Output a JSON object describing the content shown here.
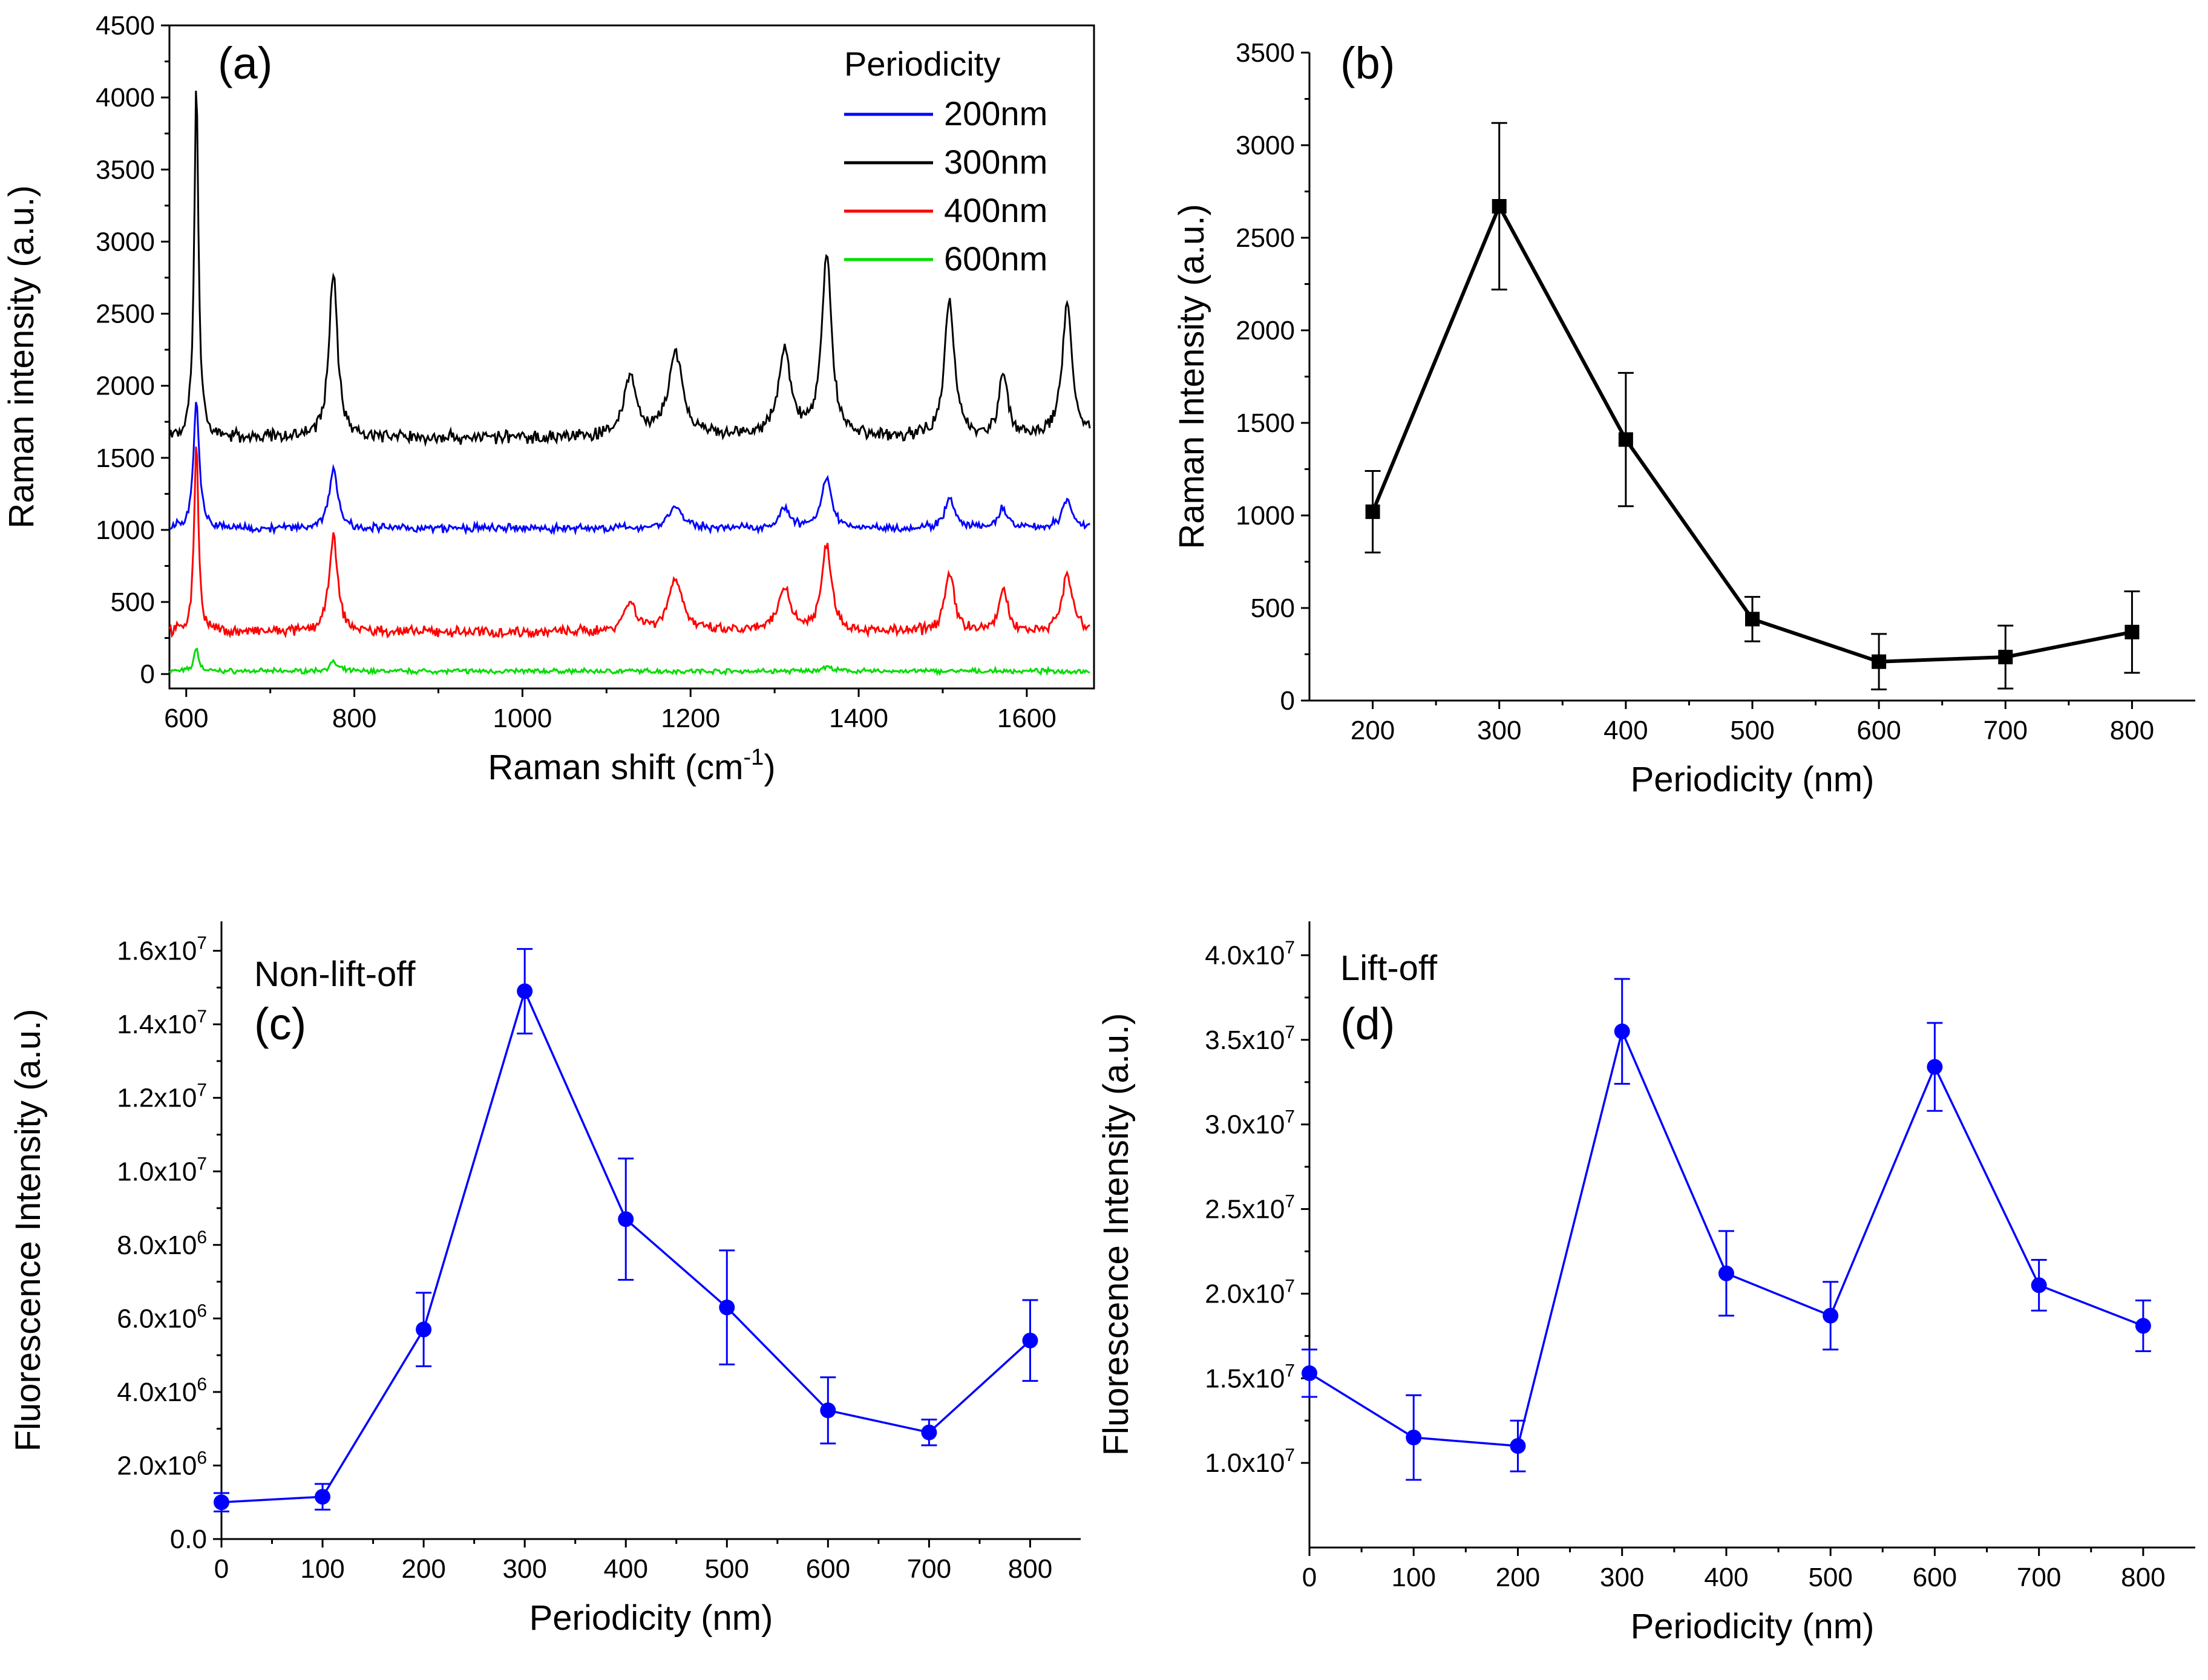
{
  "chart_data": [
    {
      "id": "a",
      "type": "line",
      "panel_label": "(a)",
      "xlabel": "Raman shift (cm",
      "xlabel_sup": "-1",
      "xlabel_tail": ")",
      "ylabel": "Raman intensity (a.u.)",
      "xlim": [
        580,
        1680
      ],
      "ylim": [
        -100,
        4500
      ],
      "xticks": [
        600,
        800,
        1000,
        1200,
        1400,
        1600
      ],
      "xtick_labels": [
        "600",
        "800",
        "1000",
        "1200",
        "1400",
        "1600"
      ],
      "yticks": [
        0,
        500,
        1000,
        1500,
        2000,
        2500,
        3000,
        3500,
        4000,
        4500
      ],
      "ytick_labels": [
        "0",
        "500",
        "1000",
        "1500",
        "2000",
        "2500",
        "3000",
        "3500",
        "4000",
        "4500"
      ],
      "legend_title": "Periodicity",
      "legend_position": "top-right",
      "series": [
        {
          "name": "200nm",
          "color": "#0000ff",
          "baseline": 1010,
          "noise": 35,
          "peaks": [
            [
              612,
              900,
              4
            ],
            [
              775,
              420,
              6
            ],
            [
              1182,
              150,
              10
            ],
            [
              1312,
              130,
              8
            ],
            [
              1362,
              340,
              7
            ],
            [
              1508,
              200,
              7
            ],
            [
              1572,
              140,
              6
            ],
            [
              1648,
              200,
              7
            ]
          ]
        },
        {
          "name": "300nm",
          "color": "#000000",
          "baseline": 1640,
          "noise": 55,
          "peaks": [
            [
              612,
              2450,
              3
            ],
            [
              775,
              1150,
              6
            ],
            [
              1128,
              420,
              9
            ],
            [
              1182,
              580,
              10
            ],
            [
              1312,
              580,
              9
            ],
            [
              1362,
              1250,
              7
            ],
            [
              1508,
              940,
              7
            ],
            [
              1572,
              440,
              6
            ],
            [
              1648,
              940,
              7
            ]
          ]
        },
        {
          "name": "400nm",
          "color": "#ff0000",
          "baseline": 290,
          "noise": 45,
          "peaks": [
            [
              612,
              1350,
              3
            ],
            [
              775,
              660,
              6
            ],
            [
              1128,
              200,
              9
            ],
            [
              1182,
              370,
              10
            ],
            [
              1312,
              300,
              9
            ],
            [
              1362,
              600,
              7
            ],
            [
              1508,
              400,
              7
            ],
            [
              1572,
              300,
              6
            ],
            [
              1648,
              420,
              7
            ]
          ]
        },
        {
          "name": "600nm",
          "color": "#00dd00",
          "baseline": 20,
          "noise": 20,
          "peaks": [
            [
              612,
              170,
              3
            ],
            [
              775,
              60,
              6
            ],
            [
              1362,
              30,
              7
            ]
          ]
        }
      ]
    },
    {
      "id": "b",
      "type": "line",
      "panel_label": "(b)",
      "xlabel": "Periodicity (nm)",
      "ylabel": "Raman Intensity (a.u.)",
      "xlim": [
        150,
        850
      ],
      "ylim": [
        0,
        3500
      ],
      "xticks": [
        200,
        300,
        400,
        500,
        600,
        700,
        800
      ],
      "xtick_labels": [
        "200",
        "300",
        "400",
        "500",
        "600",
        "700",
        "800"
      ],
      "yticks": [
        0,
        500,
        1000,
        1500,
        2000,
        2500,
        3000,
        3500
      ],
      "ytick_labels": [
        "0",
        "500",
        "1000",
        "1500",
        "2000",
        "2500",
        "3000",
        "3500"
      ],
      "marker": "square",
      "color": "#000000",
      "x": [
        200,
        300,
        400,
        500,
        600,
        700,
        800
      ],
      "y": [
        1020,
        2670,
        1410,
        440,
        210,
        235,
        370
      ],
      "yerr": [
        220,
        450,
        360,
        120,
        150,
        170,
        220
      ]
    },
    {
      "id": "c",
      "type": "line",
      "panel_label": "(c)",
      "annotation": "Non-lift-off",
      "xlabel": "Periodicity (nm)",
      "ylabel": "Fluorescence Intensity (a.u.)",
      "xlim": [
        0,
        850
      ],
      "ylim": [
        0,
        16800000
      ],
      "xticks": [
        0,
        100,
        200,
        300,
        400,
        500,
        600,
        700,
        800
      ],
      "xtick_labels": [
        "0",
        "100",
        "200",
        "300",
        "400",
        "500",
        "600",
        "700",
        "800"
      ],
      "yticks": [
        0,
        2000000,
        4000000,
        6000000,
        8000000,
        10000000,
        12000000,
        14000000,
        16000000
      ],
      "ytick_labels": [
        "0.0",
        "2.0x10^6",
        "4.0x10^6",
        "6.0x10^6",
        "8.0x10^6",
        "1.0x10^7",
        "1.2x10^7",
        "1.4x10^7",
        "1.6x10^7"
      ],
      "marker": "circle",
      "color": "#0000ff",
      "x": [
        0,
        100,
        200,
        300,
        400,
        500,
        600,
        700,
        800
      ],
      "y": [
        1000000,
        1150000,
        5700000,
        14900000,
        8700000,
        6300000,
        3500000,
        2900000,
        5400000
      ],
      "yerr": [
        250000,
        350000,
        1000000,
        1150000,
        1650000,
        1550000,
        900000,
        350000,
        1100000
      ]
    },
    {
      "id": "d",
      "type": "line",
      "panel_label": "(d)",
      "annotation": "Lift-off",
      "xlabel": "Periodicity (nm)",
      "ylabel": "Fluorescence Intensity (a.u.)",
      "xlim": [
        0,
        850
      ],
      "ylim": [
        5000000,
        42000000
      ],
      "xticks": [
        0,
        100,
        200,
        300,
        400,
        500,
        600,
        700,
        800
      ],
      "xtick_labels": [
        "0",
        "100",
        "200",
        "300",
        "400",
        "500",
        "600",
        "700",
        "800"
      ],
      "yticks": [
        10000000,
        15000000,
        20000000,
        25000000,
        30000000,
        35000000,
        40000000
      ],
      "ytick_labels": [
        "1.0x10^7",
        "1.5x10^7",
        "2.0x10^7",
        "2.5x10^7",
        "3.0x10^7",
        "3.5x10^7",
        "4.0x10^7"
      ],
      "marker": "circle",
      "color": "#0000ff",
      "x": [
        0,
        100,
        200,
        300,
        400,
        500,
        600,
        700,
        800
      ],
      "y": [
        15300000,
        11500000,
        11000000,
        35500000,
        21200000,
        18700000,
        33400000,
        20500000,
        18100000
      ],
      "yerr": [
        1400000,
        2500000,
        1500000,
        3100000,
        2500000,
        2000000,
        2600000,
        1500000,
        1500000
      ]
    }
  ]
}
